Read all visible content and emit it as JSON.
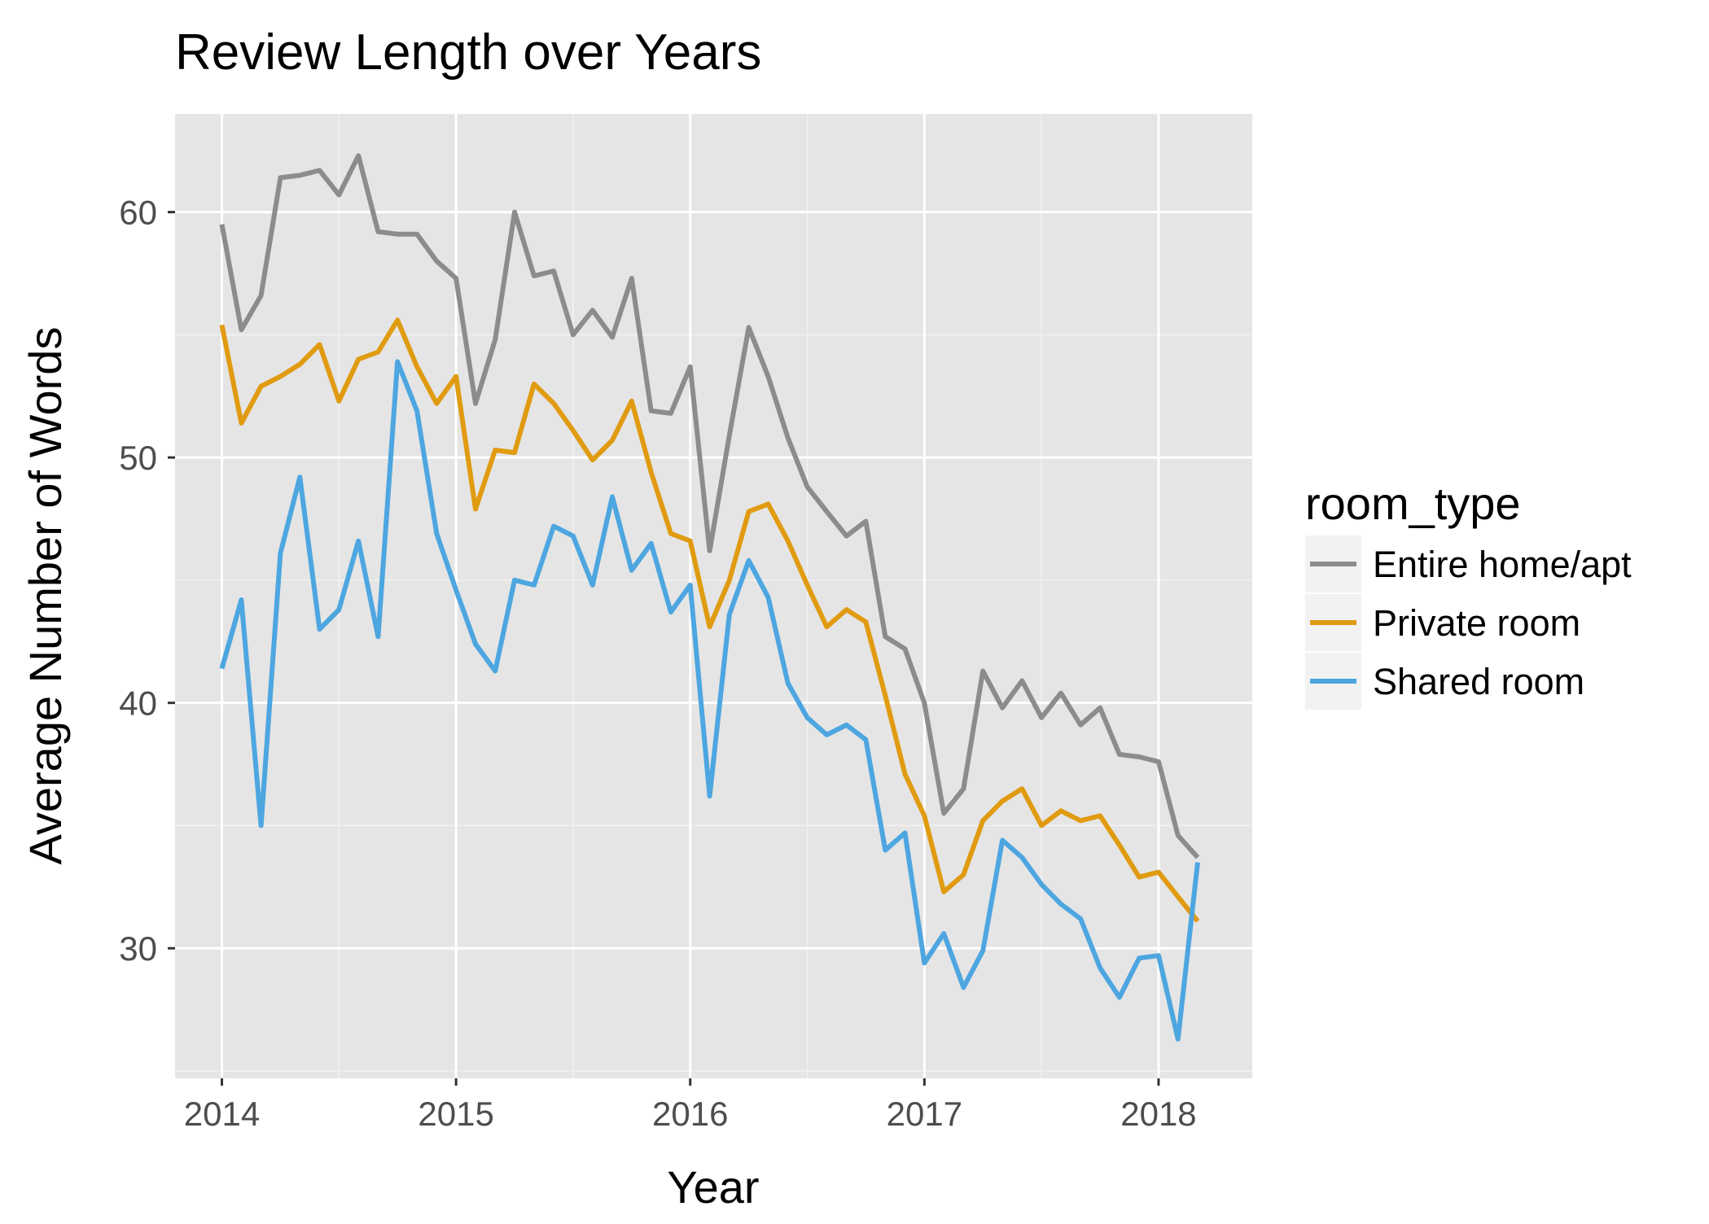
{
  "chart_data": {
    "type": "line",
    "title": "Review Length over Years",
    "xlabel": "Year",
    "ylabel": "Average Number of Words",
    "xlim": [
      2013.8,
      2018.4
    ],
    "ylim": [
      24.7,
      64.0
    ],
    "x_ticks": [
      2014,
      2015,
      2016,
      2017,
      2018
    ],
    "x_tick_labels": [
      "2014",
      "2015",
      "2016",
      "2017",
      "2018"
    ],
    "y_ticks": [
      30,
      40,
      50,
      60
    ],
    "y_tick_labels": [
      "30",
      "40",
      "50",
      "60"
    ],
    "grid": true,
    "legend": {
      "title": "room_type",
      "position": "right"
    },
    "x": [
      2014.0,
      2014.083,
      2014.167,
      2014.25,
      2014.333,
      2014.417,
      2014.5,
      2014.583,
      2014.667,
      2014.75,
      2014.833,
      2014.917,
      2015.0,
      2015.083,
      2015.167,
      2015.25,
      2015.333,
      2015.417,
      2015.5,
      2015.583,
      2015.667,
      2015.75,
      2015.833,
      2015.917,
      2016.0,
      2016.083,
      2016.167,
      2016.25,
      2016.333,
      2016.417,
      2016.5,
      2016.583,
      2016.667,
      2016.75,
      2016.833,
      2016.917,
      2017.0,
      2017.083,
      2017.167,
      2017.25,
      2017.333,
      2017.417,
      2017.5,
      2017.583,
      2017.667,
      2017.75,
      2017.833,
      2017.917,
      2018.0,
      2018.083,
      2018.167
    ],
    "series": [
      {
        "name": "Entire home/apt",
        "color": "#8c8c8c",
        "values": [
          59.5,
          55.2,
          56.6,
          61.4,
          61.5,
          61.7,
          60.7,
          62.3,
          59.2,
          59.1,
          59.1,
          58.0,
          57.3,
          52.2,
          54.8,
          60.0,
          57.4,
          57.6,
          55.0,
          56.0,
          54.9,
          57.3,
          51.9,
          51.8,
          53.7,
          46.2,
          50.9,
          55.3,
          53.3,
          50.8,
          48.8,
          47.8,
          46.8,
          47.4,
          42.7,
          42.2,
          40.0,
          35.5,
          36.5,
          41.3,
          39.8,
          40.9,
          39.4,
          40.4,
          39.1,
          39.8,
          37.9,
          37.8,
          37.6,
          34.6,
          33.7
        ]
      },
      {
        "name": "Private room",
        "color": "#e09b11",
        "values": [
          55.4,
          51.4,
          52.9,
          53.3,
          53.8,
          54.6,
          52.3,
          54.0,
          54.3,
          55.6,
          53.7,
          52.2,
          53.3,
          47.9,
          50.3,
          50.2,
          53.0,
          52.2,
          51.1,
          49.9,
          50.7,
          52.3,
          49.4,
          46.9,
          46.6,
          43.1,
          45.0,
          47.8,
          48.1,
          46.6,
          44.8,
          43.1,
          43.8,
          43.3,
          40.3,
          37.1,
          35.4,
          32.3,
          33.0,
          35.2,
          36.0,
          36.5,
          35.0,
          35.6,
          35.2,
          35.4,
          34.2,
          32.9,
          33.1,
          32.1,
          31.1
        ]
      },
      {
        "name": "Shared room",
        "color": "#4da6e0",
        "values": [
          41.4,
          44.2,
          35.0,
          46.1,
          49.2,
          43.0,
          43.8,
          46.6,
          42.7,
          53.9,
          51.9,
          46.9,
          44.6,
          42.4,
          41.3,
          45.0,
          44.8,
          47.2,
          46.8,
          44.8,
          48.4,
          45.4,
          46.5,
          43.7,
          44.8,
          36.2,
          43.6,
          45.8,
          44.3,
          40.8,
          39.4,
          38.7,
          39.1,
          38.5,
          34.0,
          34.7,
          29.4,
          30.6,
          28.4,
          29.9,
          34.4,
          33.7,
          32.6,
          31.8,
          31.2,
          29.2,
          28.0,
          29.6,
          29.7,
          26.3,
          33.5
        ]
      }
    ]
  }
}
